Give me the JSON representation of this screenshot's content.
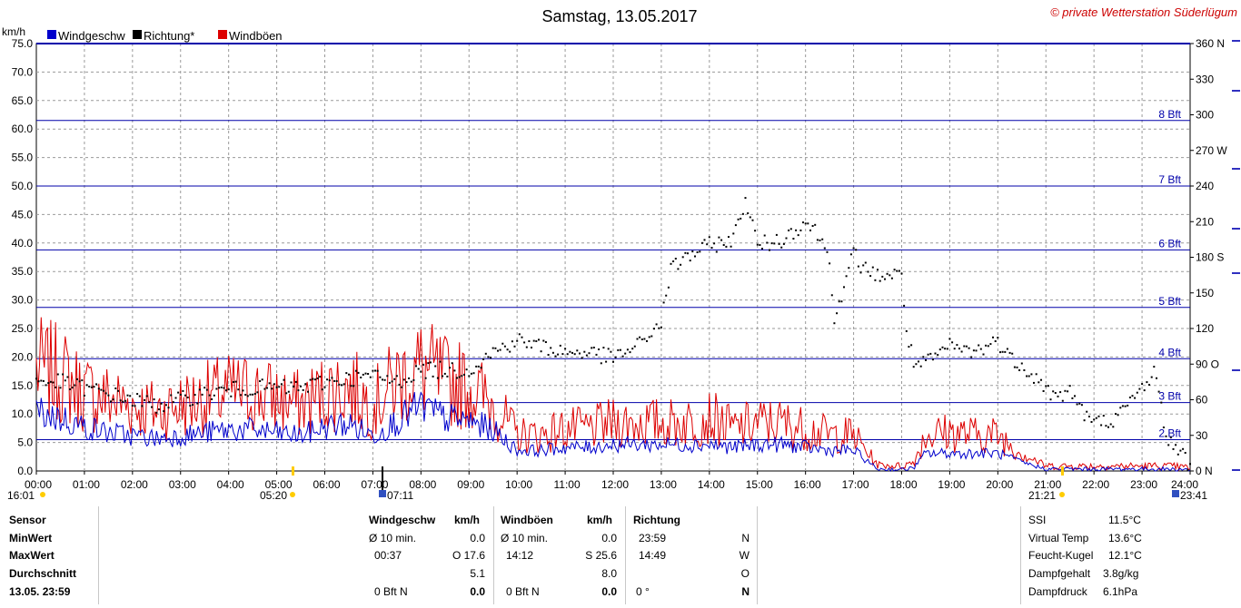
{
  "chart_data": {
    "type": "line",
    "title": "Samstag, 13.05.2017",
    "copyright": "© private Wetterstation Süderlügum",
    "y_unit": "km/h",
    "ylim": [
      0,
      75
    ],
    "y2lim": [
      0,
      360
    ],
    "y_ticks": [
      "0.0",
      "5.0",
      "10.0",
      "15.0",
      "20.0",
      "25.0",
      "30.0",
      "35.0",
      "40.0",
      "45.0",
      "50.0",
      "55.0",
      "60.0",
      "65.0",
      "70.0",
      "75.0"
    ],
    "y2_ticks": [
      "0 N",
      "30",
      "60",
      "90 O",
      "120",
      "150",
      "180 S",
      "210",
      "240",
      "270 W",
      "300",
      "330",
      "360 N"
    ],
    "x_ticks": [
      "00:00",
      "01:00",
      "02:00",
      "03:00",
      "04:00",
      "05:00",
      "06:00",
      "07:00",
      "08:00",
      "09:00",
      "10:00",
      "11:00",
      "12:00",
      "13:00",
      "14:00",
      "15:00",
      "16:00",
      "17:00",
      "18:00",
      "19:00",
      "20:00",
      "21:00",
      "22:00",
      "23:00",
      "24:00"
    ],
    "legend": [
      {
        "name": "Windgeschw",
        "color": "#0000cc"
      },
      {
        "name": "Richtung*",
        "color": "#000000"
      },
      {
        "name": "Windböen",
        "color": "#dd0000"
      }
    ],
    "beaufort_lines": [
      {
        "label": "2 Bft",
        "value": 5.5
      },
      {
        "label": "3 Bft",
        "value": 12.0
      },
      {
        "label": "4 Bft",
        "value": 19.7
      },
      {
        "label": "5 Bft",
        "value": 28.7
      },
      {
        "label": "6 Bft",
        "value": 38.8
      },
      {
        "label": "7 Bft",
        "value": 50.0
      },
      {
        "label": "8 Bft",
        "value": 61.5
      }
    ],
    "sun_events": {
      "left_time": "16:01",
      "sunrise": "05:20",
      "moon_left": "07:11",
      "sunset": "21:21",
      "moon_right": "23:41"
    },
    "series": [
      {
        "name": "Windgeschw",
        "unit": "km/h",
        "hours": [
          0,
          0.5,
          1,
          1.5,
          2,
          2.5,
          3,
          3.5,
          4,
          4.5,
          5,
          5.5,
          6,
          6.5,
          7,
          7.5,
          8,
          8.5,
          9,
          9.5,
          10,
          10.5,
          11,
          11.5,
          12,
          12.5,
          13,
          13.5,
          14,
          14.5,
          15,
          15.5,
          16,
          16.5,
          17,
          17.5,
          18,
          18.25,
          18.5,
          19,
          19.5,
          20,
          20.5,
          21,
          21.5,
          22,
          22.5,
          23,
          23.5,
          24
        ],
        "values": [
          10,
          9,
          7.5,
          6.5,
          6,
          5.5,
          6,
          6.5,
          7,
          7,
          6.5,
          6,
          7.5,
          8,
          6,
          8.5,
          11,
          9,
          8.5,
          7,
          3.5,
          3.5,
          4,
          4,
          4.5,
          4.5,
          4.5,
          4.5,
          4.5,
          4,
          4.5,
          4.5,
          4,
          3.5,
          3.5,
          0.3,
          0.2,
          0.5,
          3,
          3,
          3,
          3,
          1.5,
          0.3,
          0.3,
          0.3,
          0.3,
          0.3,
          0.3,
          0.2
        ]
      },
      {
        "name": "Windböen",
        "unit": "km/h",
        "hours": [
          0,
          0.5,
          1,
          1.5,
          2,
          2.5,
          3,
          3.5,
          4,
          4.5,
          5,
          5.5,
          6,
          6.5,
          7,
          7.5,
          8,
          8.5,
          9,
          9.5,
          10,
          10.5,
          11,
          11.5,
          12,
          12.5,
          13,
          13.5,
          14,
          14.5,
          15,
          15.5,
          16,
          16.5,
          17,
          17.5,
          18,
          18.25,
          18.5,
          19,
          19.5,
          20,
          20.5,
          21,
          21.5,
          22,
          22.5,
          23,
          23.5,
          24
        ],
        "values": [
          17,
          16,
          13,
          12,
          11,
          10,
          11,
          12,
          13,
          13,
          12,
          11,
          13,
          14,
          11,
          15,
          17,
          15,
          14,
          11,
          6,
          6,
          7,
          7,
          8,
          8,
          8,
          8,
          9,
          7,
          8,
          8,
          7,
          6,
          6,
          1,
          0.8,
          1.5,
          6,
          6.5,
          6,
          6,
          3,
          0.8,
          0.8,
          0.8,
          0.8,
          0.8,
          0.8,
          0.5
        ]
      },
      {
        "name": "Richtung*",
        "unit": "°",
        "hours": [
          0,
          0.5,
          1,
          1.5,
          2,
          2.5,
          3,
          3.5,
          4,
          4.5,
          5,
          5.5,
          6,
          6.5,
          7,
          7.5,
          8,
          8.5,
          9,
          9.5,
          10,
          10.5,
          11,
          11.5,
          12,
          12.5,
          13,
          13.2,
          13.5,
          14,
          14.5,
          14.75,
          15,
          15.5,
          16,
          16.25,
          16.5,
          16.6,
          16.8,
          17,
          17.2,
          17.5,
          18,
          18.1,
          18.25,
          18.5,
          19,
          19.5,
          20,
          20.25,
          20.5,
          21,
          21.25,
          21.5,
          21.75,
          22,
          22.5,
          23,
          23.25,
          23.5,
          24
        ],
        "values": [
          75,
          75,
          70,
          65,
          60,
          55,
          60,
          65,
          68,
          70,
          70,
          70,
          75,
          78,
          80,
          75,
          85,
          85,
          85,
          100,
          110,
          105,
          100,
          100,
          95,
          105,
          125,
          170,
          180,
          190,
          195,
          230,
          190,
          195,
          210,
          200,
          180,
          130,
          150,
          185,
          170,
          165,
          165,
          120,
          90,
          90,
          105,
          100,
          110,
          95,
          90,
          70,
          60,
          70,
          50,
          40,
          45,
          70,
          85,
          30,
          5
        ]
      }
    ]
  },
  "stats": {
    "row_labels": [
      "Sensor",
      "MinWert",
      "MaxWert",
      "Durchschnitt",
      "13.05. 23:59"
    ],
    "windgeschw": {
      "header": "Windgeschw",
      "unit": "km/h",
      "min_label": "Ø 10 min.",
      "min_value": "0.0",
      "max_time": "00:37",
      "max_value": "O 17.6",
      "avg": "5.1",
      "current_bft": "0 Bft N",
      "current_value": "0.0"
    },
    "windboeen": {
      "header": "Windböen",
      "unit": "km/h",
      "min_label": "Ø 10 min.",
      "min_value": "0.0",
      "max_time": "14:12",
      "max_value": "S 25.6",
      "avg": "8.0",
      "current_bft": "0 Bft N",
      "current_value": "0.0"
    },
    "richtung": {
      "header": "Richtung",
      "min_time": "23:59",
      "min_dir": "N",
      "max_time": "14:49",
      "max_dir": "W",
      "avg_dir": "O",
      "current_deg": "0 °",
      "current_dir": "N"
    },
    "extra": [
      {
        "label": "SSI",
        "value": "11.5°C"
      },
      {
        "label": "Virtual Temp",
        "value": "13.6°C"
      },
      {
        "label": "Feucht-Kugel",
        "value": "12.1°C"
      },
      {
        "label": "Dampfgehalt",
        "value": "3.8g/kg"
      },
      {
        "label": "Dampfdruck",
        "value": "6.1hPa"
      }
    ]
  }
}
